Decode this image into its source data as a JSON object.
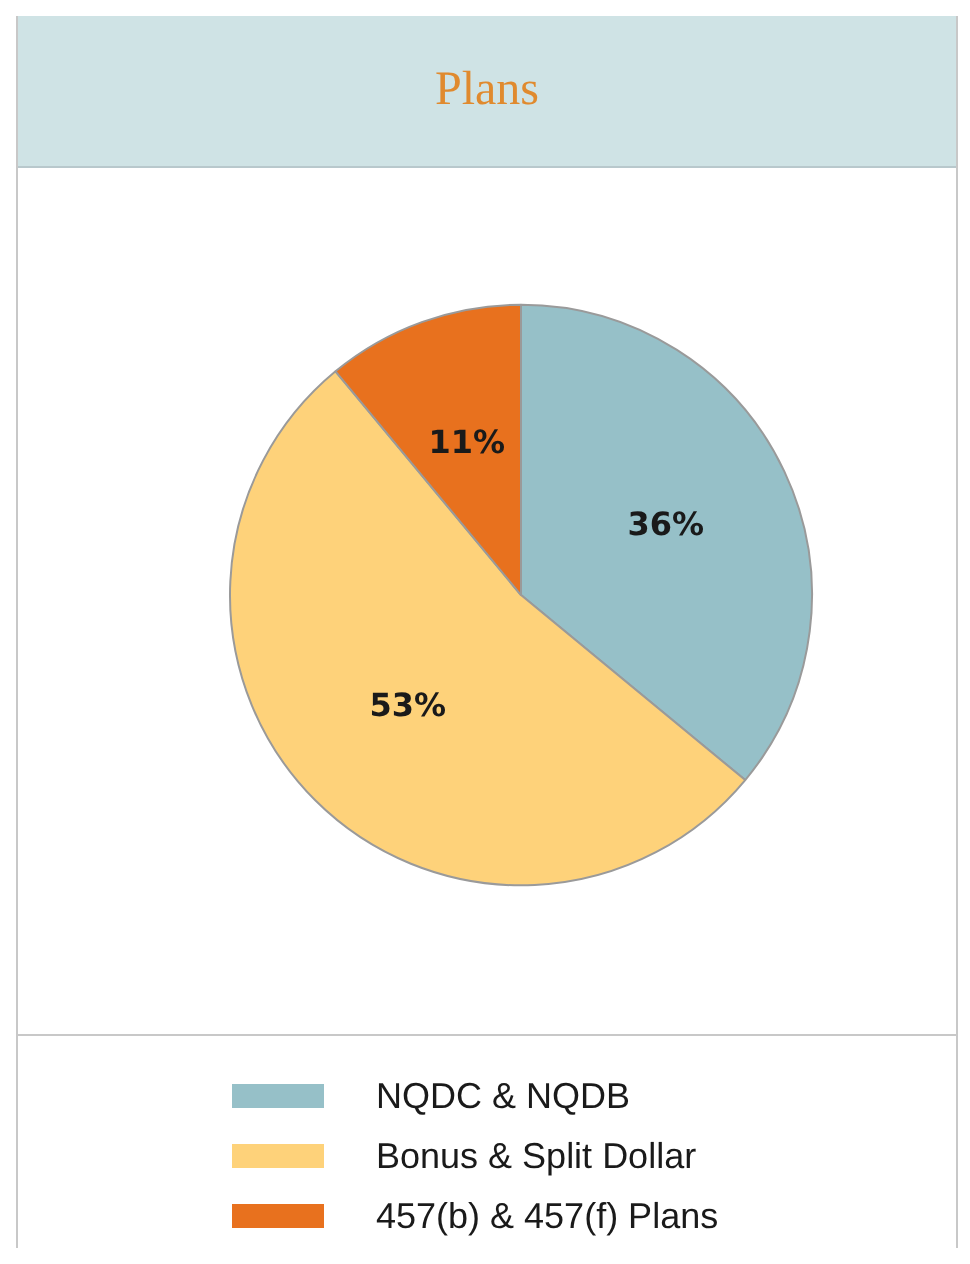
{
  "chart_data": {
    "type": "pie",
    "title": "Plans",
    "categories": [
      "NQDC & NQDB",
      "Bonus & Split Dollar",
      "457(b) & 457(f) Plans"
    ],
    "values": [
      36,
      53,
      11
    ],
    "colors": [
      "#96c0c8",
      "#fed27a",
      "#e8711e"
    ],
    "value_labels": [
      "36%",
      "53%",
      "11%"
    ],
    "legend": "bottom"
  }
}
